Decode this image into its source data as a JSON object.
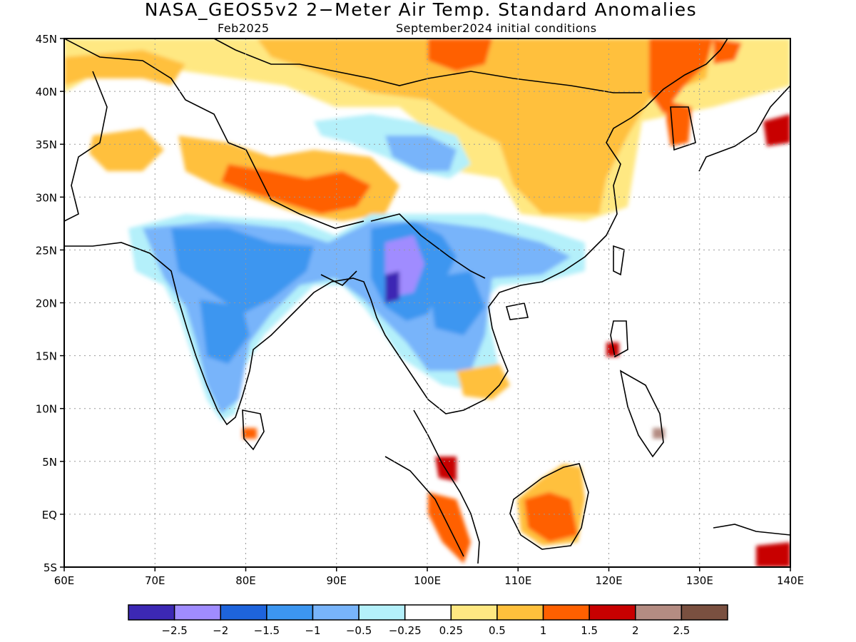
{
  "title": "NASA_GEOS5v2 2−Meter Air Temp. Standard Anomalies",
  "valid_month": "Feb2025",
  "init_conditions": "September2024 initial conditions",
  "map": {
    "lon_range": [
      60,
      140
    ],
    "lat_range": [
      -5,
      45
    ],
    "lat_ticks": [
      {
        "value": 45,
        "label": "45N"
      },
      {
        "value": 40,
        "label": "40N"
      },
      {
        "value": 35,
        "label": "35N"
      },
      {
        "value": 30,
        "label": "30N"
      },
      {
        "value": 25,
        "label": "25N"
      },
      {
        "value": 20,
        "label": "20N"
      },
      {
        "value": 15,
        "label": "15N"
      },
      {
        "value": 10,
        "label": "10N"
      },
      {
        "value": 5,
        "label": "5N"
      },
      {
        "value": 0,
        "label": "EQ"
      },
      {
        "value": -5,
        "label": "5S"
      }
    ],
    "lon_ticks": [
      {
        "value": 60,
        "label": "60E"
      },
      {
        "value": 70,
        "label": "70E"
      },
      {
        "value": 80,
        "label": "80E"
      },
      {
        "value": 90,
        "label": "90E"
      },
      {
        "value": 100,
        "label": "100E"
      },
      {
        "value": 110,
        "label": "110E"
      },
      {
        "value": 120,
        "label": "120E"
      },
      {
        "value": 130,
        "label": "130E"
      },
      {
        "value": 140,
        "label": "140E"
      }
    ],
    "grid": "dotted"
  },
  "colorbar": {
    "colors": [
      "#3c28b4",
      "#a08cff",
      "#1e64dc",
      "#3c96f0",
      "#78b4fa",
      "#b4f0fa",
      "#ffffff",
      "#ffe882",
      "#ffc03c",
      "#ff6000",
      "#c80000",
      "#b48c82",
      "#7a5040"
    ],
    "tick_labels": [
      "−2.5",
      "−2",
      "−1.5",
      "−1",
      "−0.5",
      "−0.25",
      "0.25",
      "0.5",
      "1",
      "1.5",
      "2",
      "2.5"
    ]
  }
}
